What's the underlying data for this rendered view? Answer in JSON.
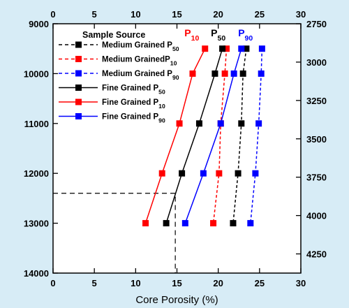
{
  "chart_data": {
    "type": "line",
    "xlabel": "Core Porosity (%)",
    "xlim": [
      0,
      30
    ],
    "xticks": [
      "0",
      "5",
      "10",
      "15",
      "20",
      "25",
      "30"
    ],
    "ylim_left": [
      9000,
      14000
    ],
    "yticks_left": [
      "9000",
      "10000",
      "11000",
      "12000",
      "13000",
      "14000"
    ],
    "ylim_right": [
      2750,
      4375
    ],
    "yticks_right": [
      "2750",
      "3000",
      "3250",
      "3500",
      "3750",
      "4000",
      "4250"
    ],
    "legend_title": "Sample Source",
    "series": [
      {
        "name": "Medium Grained P50",
        "color": "#000000",
        "style": "dashed",
        "x": [
          23.4,
          23.0,
          22.8,
          22.4,
          21.8
        ],
        "y": [
          9500,
          10000,
          11000,
          12000,
          13000
        ]
      },
      {
        "name": "Medium GrainedP10",
        "color": "#ff0000",
        "style": "dashed",
        "x": [
          21.0,
          20.8,
          20.3,
          20.1,
          19.4
        ],
        "y": [
          9500,
          10000,
          11000,
          12000,
          13000
        ]
      },
      {
        "name": "Medium Grained P90",
        "color": "#0000ff",
        "style": "dashed",
        "x": [
          25.3,
          25.2,
          24.9,
          24.5,
          23.9
        ],
        "y": [
          9500,
          10000,
          11000,
          12000,
          13000
        ]
      },
      {
        "name": "Fine Grained P50",
        "color": "#000000",
        "style": "solid",
        "x": [
          20.5,
          19.6,
          17.7,
          15.6,
          13.7
        ],
        "y": [
          9500,
          10000,
          11000,
          12000,
          13000
        ]
      },
      {
        "name": "Fine Grained P10",
        "color": "#ff0000",
        "style": "solid",
        "x": [
          18.4,
          16.9,
          15.3,
          13.2,
          11.2
        ],
        "y": [
          9500,
          10000,
          11000,
          12000,
          13000
        ]
      },
      {
        "name": "Fine Grained P90",
        "color": "#0000ff",
        "style": "solid",
        "x": [
          22.8,
          21.9,
          20.3,
          18.2,
          16.0
        ],
        "y": [
          9500,
          10000,
          11000,
          12000,
          13000
        ]
      }
    ],
    "top_labels": [
      {
        "text": "P10",
        "color": "#ff0000"
      },
      {
        "text": "P50",
        "color": "#000000"
      },
      {
        "text": "P90",
        "color": "#0000ff"
      }
    ],
    "reference_lines": {
      "x": 14.8,
      "y": 12400
    }
  }
}
